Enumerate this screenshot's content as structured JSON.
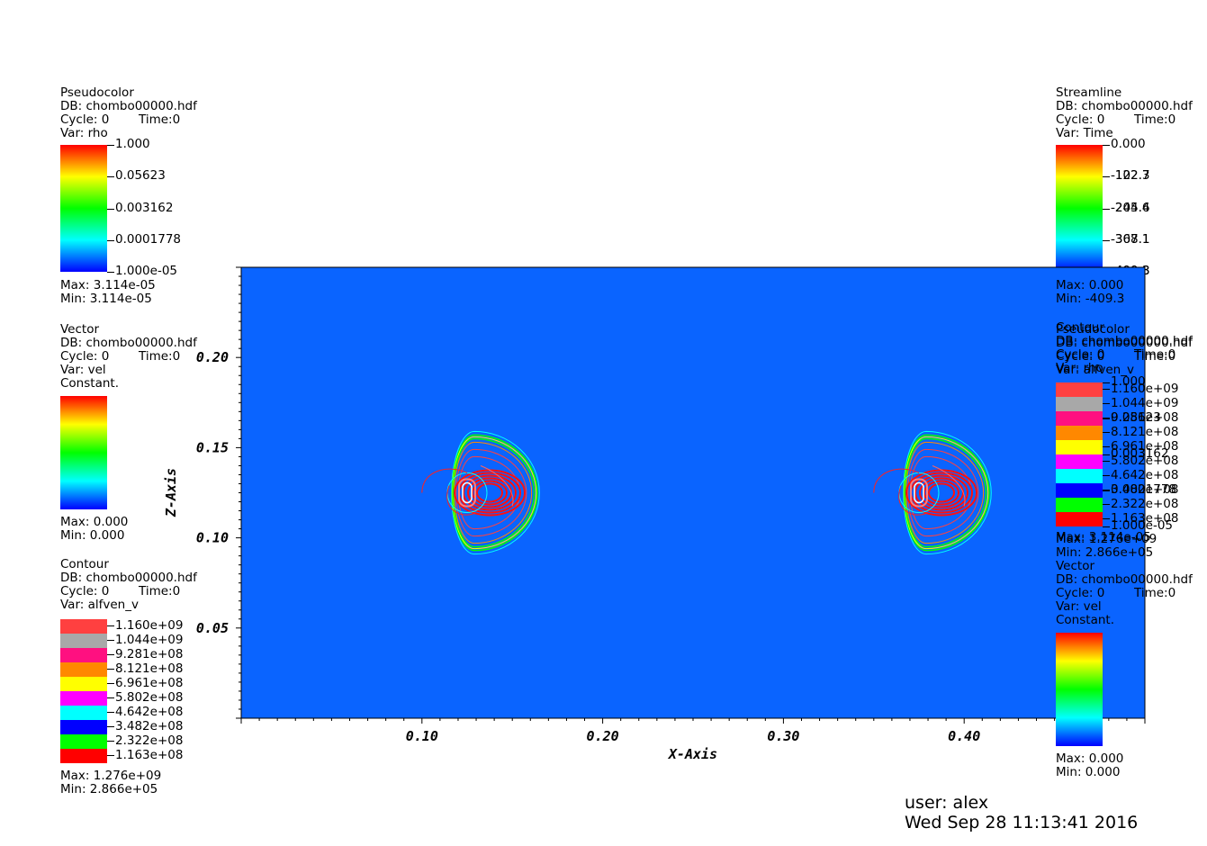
{
  "legends": {
    "pseudocolor_rho": {
      "plot": "Pseudocolor",
      "db": "DB: chombo00000.hdf",
      "cycle": "Cycle: 0",
      "time": "Time:0",
      "var": "Var: rho",
      "ticks": [
        "1.000",
        "0.05623",
        "0.003162",
        "0.0001778",
        "1.000e-05"
      ],
      "max": "Max:  3.114e-05",
      "min": "Min:  3.114e-05"
    },
    "vector_vel": {
      "plot": "Vector",
      "db": "DB: chombo00000.hdf",
      "cycle": "Cycle: 0",
      "time": "Time:0",
      "var": "Var: vel",
      "extra": "Constant.",
      "max": "Max:  0.000",
      "min": "Min:  0.000"
    },
    "contour_alfven": {
      "plot": "Contour",
      "db": "DB: chombo00000.hdf",
      "cycle": "Cycle: 0",
      "time": "Time:0",
      "var": "Var: alfven_v",
      "levels": [
        {
          "label": "1.160e+09",
          "color": "#ff4040"
        },
        {
          "label": "1.044e+09",
          "color": "#a8a8a8"
        },
        {
          "label": "9.281e+08",
          "color": "#ff1080"
        },
        {
          "label": "8.121e+08",
          "color": "#ff8800"
        },
        {
          "label": "6.961e+08",
          "color": "#ffff00"
        },
        {
          "label": "5.802e+08",
          "color": "#ff00ff"
        },
        {
          "label": "4.642e+08",
          "color": "#00ffff"
        },
        {
          "label": "3.482e+08",
          "color": "#0000ff"
        },
        {
          "label": "2.322e+08",
          "color": "#00ff00"
        },
        {
          "label": "1.163e+08",
          "color": "#ff0000"
        }
      ],
      "max": "Max:  1.276e+09",
      "min": "Min:  2.866e+05"
    },
    "streamline_time": {
      "plot": "Streamline",
      "db": "DB: chombo00000.hdf",
      "cycle": "Cycle: 0",
      "time": "Time:0",
      "var": "Var: Time",
      "ticks": [
        "0.000",
        "-122.7",
        "-245.4",
        "-368.1",
        "-490.8"
      ],
      "ticks_overlay": [
        "",
        "-102.3",
        "-204.6",
        "-307.1",
        "-409.3"
      ],
      "max": "Max:  0.000",
      "min": "Min:  -409.3"
    },
    "right_overlap": {
      "plot_a": "Contour",
      "plot_b": "Pseudocolor",
      "db_a": "DB: chombo00000.hdf",
      "db_b": "DB: chombo00000.hdf",
      "cycle": "Cycle: 0",
      "time": "Time:0",
      "var_a": "Var: rho",
      "var_b": "Var: alfven_v",
      "ticks_a": [
        "1.000",
        "0.05623",
        "0.003162",
        "0.0001778",
        "1.000e-05"
      ],
      "max_a": "Max:  3.114e-05",
      "min_a": "Min:  3.114e-05",
      "max_b": "Max:  1.276e+09",
      "min_b": "Min:  2.866e+05"
    },
    "vector_vel_right": {
      "plot": "Vector",
      "db": "DB: chombo00000.hdf",
      "cycle": "Cycle: 0",
      "time": "Time:0",
      "var": "Var: vel",
      "extra": "Constant.",
      "max": "Max:  0.000",
      "min": "Min:  0.000"
    }
  },
  "footer": {
    "user": "user: alex",
    "date": "Wed Sep 28 11:13:41 2016"
  },
  "colors": {
    "field_background": "#0a64ff",
    "rainbow": [
      "#ff0000",
      "#ffff00",
      "#00ff00",
      "#00ffff",
      "#0000ff"
    ]
  },
  "chart_data": {
    "type": "heatmap",
    "xlabel": "X-Axis",
    "ylabel": "Z-Axis",
    "xlim": [
      0.0,
      0.5
    ],
    "ylim": [
      0.0,
      0.25
    ],
    "x_ticks": [
      0.1,
      0.2,
      0.3,
      0.4
    ],
    "x_tick_labels": [
      "0.10",
      "0.20",
      "0.30",
      "0.40"
    ],
    "y_ticks": [
      0.05,
      0.1,
      0.15,
      0.2
    ],
    "y_tick_labels": [
      "0.05",
      "0.10",
      "0.15",
      "0.20"
    ],
    "features": [
      {
        "name": "left-structure",
        "center_x": 0.125,
        "center_z": 0.125,
        "front_x": 0.165,
        "stream_start_x": 0.1
      },
      {
        "name": "right-structure",
        "center_x": 0.375,
        "center_z": 0.125,
        "front_x": 0.415,
        "stream_start_x": 0.35
      }
    ]
  }
}
